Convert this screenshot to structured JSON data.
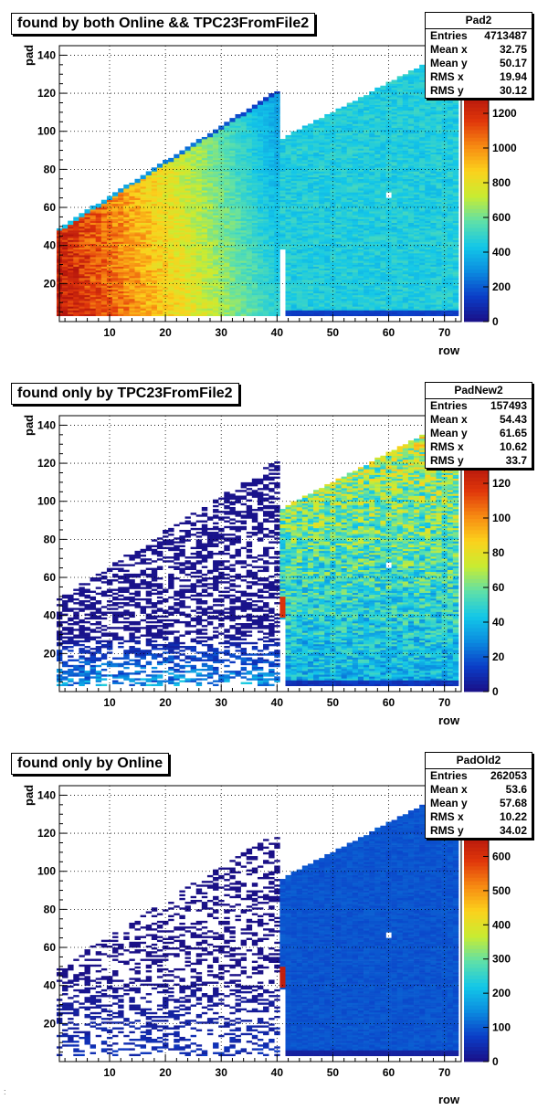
{
  "panels": [
    {
      "title": "found by both Online && TPC23FromFile2",
      "stats": {
        "name": "Pad2",
        "entries": "4713487",
        "mean_x": "32.75",
        "mean_y": "50.17",
        "rms_x": "19.94",
        "rms_y": "30.12"
      },
      "z_ticks": [
        "0",
        "200",
        "400",
        "600",
        "800",
        "1000",
        "1200"
      ],
      "zmax": 1300,
      "model": {
        "left_level": 1250,
        "left_slope": 20.5,
        "left_noise": 0.1,
        "right_level": 460,
        "right_noise": 0.14,
        "sparse": false,
        "edge_spike": 0,
        "hole": true
      }
    },
    {
      "title": "found only by TPC23FromFile2",
      "stats": {
        "name": "PadNew2",
        "entries": "157493",
        "mean_x": "54.43",
        "mean_y": "61.65",
        "rms_x": "10.62",
        "rms_y": "33.7"
      },
      "z_ticks": [
        "0",
        "20",
        "40",
        "60",
        "80",
        "100",
        "120"
      ],
      "zmax": 130,
      "model": {
        "left_level": 6,
        "left_slope": 0,
        "left_noise": 0.5,
        "right_level": 52,
        "right_noise": 0.35,
        "sparse": true,
        "edge_spike": 118,
        "hole": true
      }
    },
    {
      "title": "found only by Online",
      "stats": {
        "name": "PadOld2",
        "entries": "262053",
        "mean_x": "53.6",
        "mean_y": "57.68",
        "rms_x": "10.22",
        "rms_y": "34.02"
      },
      "z_ticks": [
        "0",
        "100",
        "200",
        "300",
        "400",
        "500",
        "600"
      ],
      "zmax": 660,
      "model": {
        "left_level": 25,
        "left_slope": 0,
        "left_noise": 0.4,
        "right_level": 95,
        "right_noise": 0.12,
        "sparse": true,
        "edge_spike": 640,
        "hole": true
      }
    }
  ],
  "axes": {
    "xlabel": "row",
    "ylabel": "pad",
    "x_ticks": [
      "10",
      "20",
      "30",
      "40",
      "50",
      "60",
      "70"
    ],
    "y_ticks": [
      "20",
      "40",
      "60",
      "80",
      "100",
      "120",
      "140"
    ],
    "stat_labels": {
      "entries": "Entries",
      "mean_x": "Mean x",
      "mean_y": "Mean y",
      "rms_x": "RMS x",
      "rms_y": "RMS y"
    }
  },
  "colors": {
    "palette": [
      "#1a0f86",
      "#0b3dc7",
      "#0b8be0",
      "#13c7e8",
      "#5fe0a8",
      "#c8ec32",
      "#fbd21c",
      "#f78a12",
      "#e0370b",
      "#b4150c"
    ]
  },
  "chart_data": [
    {
      "type": "heatmap",
      "title": "found by both Online && TPC23FromFile2",
      "xlabel": "row",
      "ylabel": "pad",
      "xlim": [
        1,
        73
      ],
      "ylim": [
        0,
        145
      ],
      "zlim": [
        0,
        1300
      ],
      "grid": true,
      "legend": "top-right stats box"
    },
    {
      "type": "heatmap",
      "title": "found only by TPC23FromFile2",
      "xlabel": "row",
      "ylabel": "pad",
      "xlim": [
        1,
        73
      ],
      "ylim": [
        0,
        145
      ],
      "zlim": [
        0,
        130
      ],
      "grid": true,
      "legend": "top-right stats box"
    },
    {
      "type": "heatmap",
      "title": "found only by Online",
      "xlabel": "row",
      "ylabel": "pad",
      "xlim": [
        1,
        73
      ],
      "ylim": [
        0,
        145
      ],
      "zlim": [
        0,
        660
      ],
      "grid": true,
      "legend": "top-right stats box"
    }
  ]
}
